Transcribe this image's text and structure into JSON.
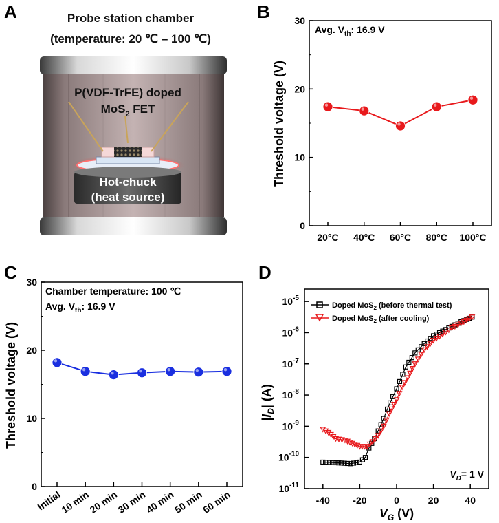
{
  "panels": {
    "a": "A",
    "b": "B",
    "c": "C",
    "d": "D"
  },
  "illustration": {
    "title_line1": "Probe station chamber",
    "title_line2": "(temperature: 20 ℃ – 100 ℃)",
    "device_line1": "P(VDF-TrFE) doped",
    "device_line2_main": "MoS",
    "device_line2_sub": "2",
    "device_line2_tail": " FET",
    "chuck_line1": "Hot-chuck",
    "chuck_line2": "(heat source)"
  },
  "colors": {
    "red": "#e8191c",
    "blue": "#1a2fe0",
    "black": "#000000"
  },
  "chart_data": [
    {
      "id": "B",
      "type": "line",
      "categories": [
        "20°C",
        "40°C",
        "60°C",
        "80°C",
        "100°C"
      ],
      "values": [
        17.4,
        16.8,
        14.6,
        17.4,
        18.4
      ],
      "ylim": [
        0,
        30
      ],
      "yticks": [
        "0",
        "10",
        "20",
        "30"
      ],
      "ylabel": "Threshold voltage (V)",
      "annotation_main": "Avg. V",
      "annotation_sub": "th",
      "annotation_tail": ": 16.9 V",
      "color": "red"
    },
    {
      "id": "C",
      "type": "line",
      "categories": [
        "Initial",
        "10 min",
        "20 min",
        "30 min",
        "40 min",
        "50 min",
        "60 min"
      ],
      "values": [
        18.2,
        16.9,
        16.4,
        16.7,
        16.9,
        16.8,
        16.9
      ],
      "ylim": [
        0,
        30
      ],
      "yticks": [
        "0",
        "10",
        "20",
        "30"
      ],
      "ylabel": "Threshold voltage (V)",
      "annotation_line1": "Chamber temperature: 100 ℃",
      "annotation_main": "Avg. V",
      "annotation_sub": "th",
      "annotation_tail": ": 16.9 V",
      "color": "blue"
    },
    {
      "id": "D",
      "type": "line",
      "xlim": [
        -50,
        50
      ],
      "xticks": [
        -40,
        -20,
        0,
        20,
        40
      ],
      "ylog": true,
      "ylim_exp": [
        -11,
        -4.6
      ],
      "yticks_exp": [
        -11,
        -10,
        -9,
        -8,
        -7,
        -6,
        -5
      ],
      "xlabel_main": "V",
      "xlabel_sub": "G",
      "xlabel_tail": " (V)",
      "ylabel_pre": "|I",
      "ylabel_sub": "D",
      "ylabel_tail": "| (A)",
      "note_main": "V",
      "note_sub": "D",
      "note_tail": "= 1 V",
      "series": [
        {
          "name_main": "Doped MoS",
          "name_sub": "2",
          "name_tail": " (before thermal test)",
          "marker": "square",
          "color": "black",
          "log_points": [
            [
              -40,
              -10.15
            ],
            [
              -30,
              -10.18
            ],
            [
              -25,
              -10.2
            ],
            [
              -20,
              -10.15
            ],
            [
              -17,
              -10.0
            ],
            [
              -15,
              -9.7
            ],
            [
              -12,
              -9.4
            ],
            [
              -10,
              -9.15
            ],
            [
              -7,
              -8.75
            ],
            [
              -5,
              -8.45
            ],
            [
              -2,
              -8.05
            ],
            [
              0,
              -7.8
            ],
            [
              5,
              -7.1
            ],
            [
              10,
              -6.65
            ],
            [
              15,
              -6.35
            ],
            [
              20,
              -6.1
            ],
            [
              25,
              -5.95
            ],
            [
              30,
              -5.8
            ],
            [
              35,
              -5.65
            ],
            [
              41,
              -5.5
            ]
          ]
        },
        {
          "name_main": "Doped MoS",
          "name_sub": "2",
          "name_tail": " (after cooling)",
          "marker": "triangle-down",
          "color": "red",
          "log_points": [
            [
              -40,
              -9.1
            ],
            [
              -37,
              -9.2
            ],
            [
              -33,
              -9.4
            ],
            [
              -28,
              -9.45
            ],
            [
              -24,
              -9.55
            ],
            [
              -20,
              -9.65
            ],
            [
              -16,
              -9.65
            ],
            [
              -13,
              -9.5
            ],
            [
              -10,
              -9.3
            ],
            [
              -7,
              -9.0
            ],
            [
              -4,
              -8.6
            ],
            [
              0,
              -8.15
            ],
            [
              3,
              -7.75
            ],
            [
              6,
              -7.45
            ],
            [
              10,
              -7.0
            ],
            [
              15,
              -6.55
            ],
            [
              20,
              -6.25
            ],
            [
              25,
              -6.05
            ],
            [
              30,
              -5.85
            ],
            [
              35,
              -5.7
            ],
            [
              41,
              -5.5
            ]
          ]
        }
      ]
    }
  ]
}
